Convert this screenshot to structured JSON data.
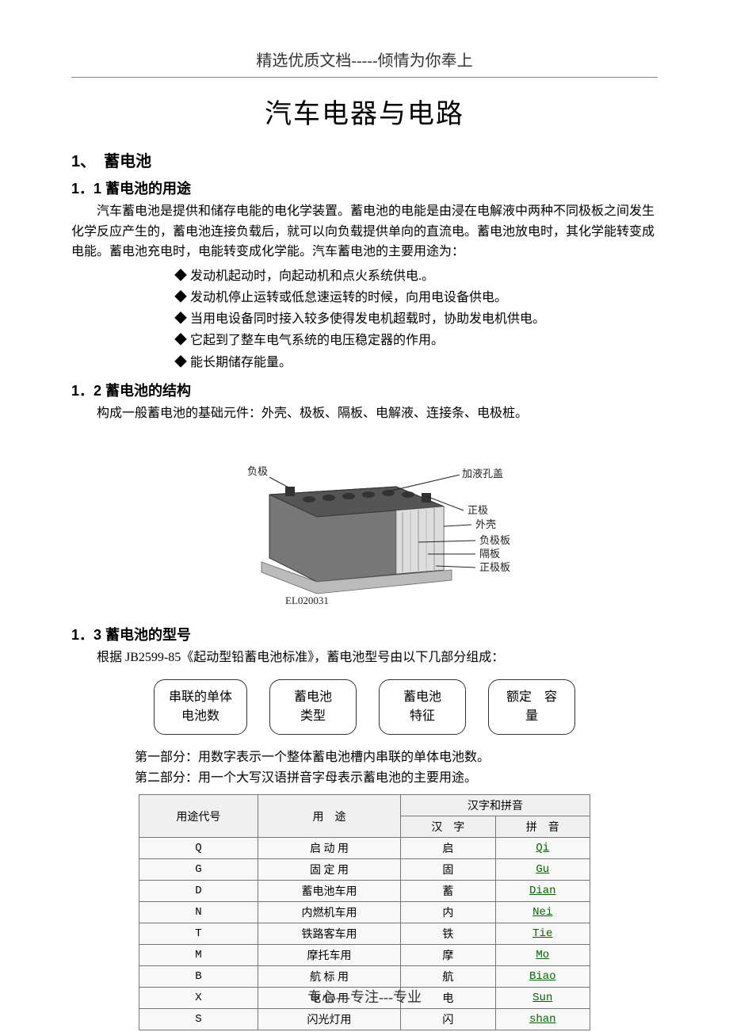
{
  "header": {
    "text": "精选优质文档-----倾情为你奉上"
  },
  "title": "汽车电器与电路",
  "sec1": {
    "num_title": "1、　蓄电池",
    "s11_title": "1．1 蓄电池的用途",
    "s11_para": "汽车蓄电池是提供和储存电能的电化学装置。蓄电池的电能是由浸在电解液中两种不同极板之间发生化学反应产生的，蓄电池连接负载后，就可以向负载提供单向的直流电。蓄电池放电时，其化学能转变成电能。蓄电池充电时，电能转变成化学能。汽车蓄电池的主要用途为：",
    "s11_bullets": [
      "发动机起动时，向起动机和点火系统供电.。",
      "发动机停止运转或低怠速运转的时候，向用电设备供电。",
      "当用电设备同时接入较多使得发电机超载时，协助发电机供电。",
      "它起到了整车电气系统的电压稳定器的作用。",
      "能长期储存能量。"
    ],
    "s12_title": "1．2 蓄电池的结构",
    "s12_para": "构成一般蓄电池的基础元件：外壳、极板、隔板、电解液、连接条、电极桩。",
    "figure": {
      "labels": {
        "neg_terminal": "负极",
        "fill_cap": "加液孔盖",
        "pos_terminal": "正极",
        "case": "外壳",
        "neg_plate": "负极板",
        "separator": "隔板",
        "pos_plate": "正极板",
        "code": "EL020031"
      },
      "colors": {
        "body": "#777777",
        "top": "#555555",
        "cap": "#333333",
        "cut": "#dddddd",
        "line": "#222222"
      }
    },
    "s13_title": "1．3 蓄电池的型号",
    "s13_para": "根据 JB2599-85《起动型铅蓄电池标准》，蓄电池型号由以下几部分组成：",
    "boxes": [
      "串联的单体\n电池数",
      "蓄电池\n类型",
      "蓄电池\n特征",
      "额定　容\n量"
    ],
    "sub_paras": [
      "第一部分：用数字表示一个整体蓄电池槽内串联的单体电池数。",
      "第二部分：用一个大写汉语拼音字母表示蓄电池的主要用途。"
    ],
    "table": {
      "head": {
        "col1": "用途代号",
        "col2": "用　途",
        "col3_group": "汉字和拼音",
        "col3a": "汉　字",
        "col3b": "拼　音"
      },
      "rows": [
        {
          "code": "Q",
          "use": "启 动 用",
          "hanzi": "启",
          "pinyin": "Qi"
        },
        {
          "code": "G",
          "use": "固 定 用",
          "hanzi": "固",
          "pinyin": "Gu"
        },
        {
          "code": "D",
          "use": "蓄电池车用",
          "hanzi": "蓄",
          "pinyin": "Dian"
        },
        {
          "code": "N",
          "use": "内燃机车用",
          "hanzi": "内",
          "pinyin": "Nei"
        },
        {
          "code": "T",
          "use": "铁路客车用",
          "hanzi": "铁",
          "pinyin": "Tie"
        },
        {
          "code": "M",
          "use": "摩托车用",
          "hanzi": "摩",
          "pinyin": "Mo"
        },
        {
          "code": "B",
          "use": "航 标 用",
          "hanzi": "航",
          "pinyin": "Biao"
        },
        {
          "code": "X",
          "use": "电 信 用",
          "hanzi": "电",
          "pinyin": "Sun"
        },
        {
          "code": "S",
          "use": "闪光灯用",
          "hanzi": "闪",
          "pinyin": "shan"
        }
      ]
    }
  },
  "footer": {
    "text": "专心---专注---专业"
  }
}
